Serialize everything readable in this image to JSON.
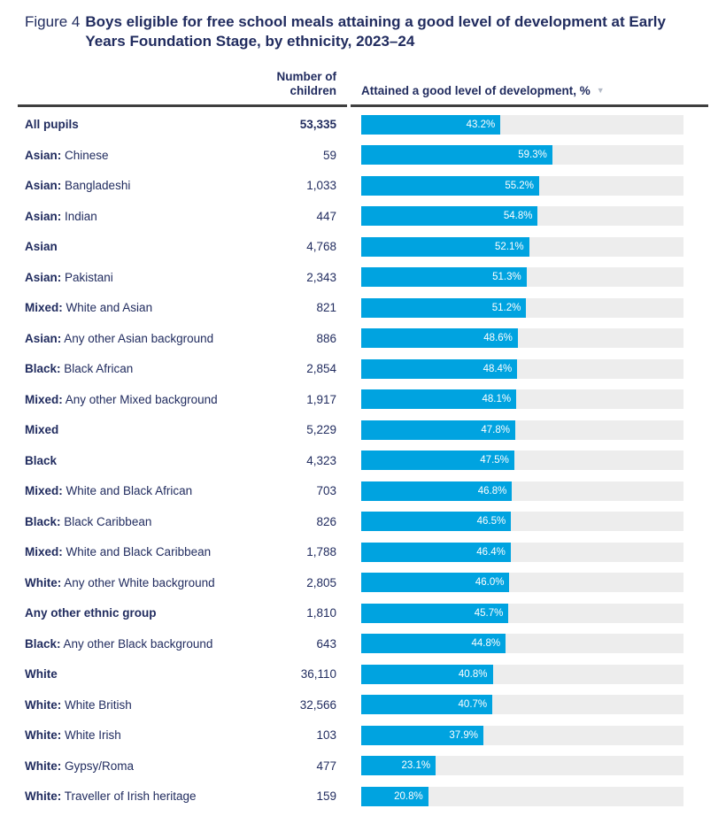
{
  "figure": {
    "label": "Figure 4",
    "title": "Boys eligible for free school meals attaining a good level of development at Early Years Foundation Stage, by ethnicity, 2023–24"
  },
  "table_header": {
    "children_line1": "Number of",
    "children_line2": "children",
    "attained": "Attained a good level of development, %",
    "sort_icon": "▼"
  },
  "colors": {
    "bar_fill": "#00a3e0",
    "bar_track": "#ededed",
    "text_navy": "#212c5f",
    "header_rule": "#3f3f3f",
    "sort_icon": "#b3bac7",
    "bar_label_text": "#ffffff"
  },
  "chart_data": {
    "type": "bar",
    "orientation": "horizontal",
    "title": "Boys eligible for free school meals attaining a good level of development at Early Years Foundation Stage, by ethnicity, 2023–24",
    "value_axis_label": "Attained a good level of development, %",
    "xlim": [
      0,
      100
    ],
    "grid": false,
    "legend": false,
    "rows": [
      {
        "prefix": "All pupils",
        "rest": "",
        "children": "53,335",
        "children_bold": true,
        "value": 43.2,
        "pct_label": "43.2%"
      },
      {
        "prefix": "Asian:",
        "rest": " Chinese",
        "children": "59",
        "children_bold": false,
        "value": 59.3,
        "pct_label": "59.3%"
      },
      {
        "prefix": "Asian:",
        "rest": " Bangladeshi",
        "children": "1,033",
        "children_bold": false,
        "value": 55.2,
        "pct_label": "55.2%"
      },
      {
        "prefix": "Asian:",
        "rest": " Indian",
        "children": "447",
        "children_bold": false,
        "value": 54.8,
        "pct_label": "54.8%"
      },
      {
        "prefix": "Asian",
        "rest": "",
        "children": "4,768",
        "children_bold": false,
        "value": 52.1,
        "pct_label": "52.1%"
      },
      {
        "prefix": "Asian:",
        "rest": " Pakistani",
        "children": "2,343",
        "children_bold": false,
        "value": 51.3,
        "pct_label": "51.3%"
      },
      {
        "prefix": "Mixed:",
        "rest": " White and Asian",
        "children": "821",
        "children_bold": false,
        "value": 51.2,
        "pct_label": "51.2%"
      },
      {
        "prefix": "Asian:",
        "rest": " Any other Asian background",
        "children": "886",
        "children_bold": false,
        "value": 48.6,
        "pct_label": "48.6%"
      },
      {
        "prefix": "Black:",
        "rest": " Black African",
        "children": "2,854",
        "children_bold": false,
        "value": 48.4,
        "pct_label": "48.4%"
      },
      {
        "prefix": "Mixed:",
        "rest": " Any other Mixed background",
        "children": "1,917",
        "children_bold": false,
        "value": 48.1,
        "pct_label": "48.1%"
      },
      {
        "prefix": "Mixed",
        "rest": "",
        "children": "5,229",
        "children_bold": false,
        "value": 47.8,
        "pct_label": "47.8%"
      },
      {
        "prefix": "Black",
        "rest": "",
        "children": "4,323",
        "children_bold": false,
        "value": 47.5,
        "pct_label": "47.5%"
      },
      {
        "prefix": "Mixed:",
        "rest": " White and Black African",
        "children": "703",
        "children_bold": false,
        "value": 46.8,
        "pct_label": "46.8%"
      },
      {
        "prefix": "Black:",
        "rest": " Black Caribbean",
        "children": "826",
        "children_bold": false,
        "value": 46.5,
        "pct_label": "46.5%"
      },
      {
        "prefix": "Mixed:",
        "rest": " White and Black Caribbean",
        "children": "1,788",
        "children_bold": false,
        "value": 46.4,
        "pct_label": "46.4%"
      },
      {
        "prefix": "White:",
        "rest": " Any other White background",
        "children": "2,805",
        "children_bold": false,
        "value": 46.0,
        "pct_label": "46.0%"
      },
      {
        "prefix": "Any other ethnic group",
        "rest": "",
        "children": "1,810",
        "children_bold": false,
        "value": 45.7,
        "pct_label": "45.7%"
      },
      {
        "prefix": "Black:",
        "rest": " Any other Black background",
        "children": "643",
        "children_bold": false,
        "value": 44.8,
        "pct_label": "44.8%"
      },
      {
        "prefix": "White",
        "rest": "",
        "children": "36,110",
        "children_bold": false,
        "value": 40.8,
        "pct_label": "40.8%"
      },
      {
        "prefix": "White:",
        "rest": " White British",
        "children": "32,566",
        "children_bold": false,
        "value": 40.7,
        "pct_label": "40.7%"
      },
      {
        "prefix": "White:",
        "rest": " White Irish",
        "children": "103",
        "children_bold": false,
        "value": 37.9,
        "pct_label": "37.9%"
      },
      {
        "prefix": "White:",
        "rest": " Gypsy/Roma",
        "children": "477",
        "children_bold": false,
        "value": 23.1,
        "pct_label": "23.1%"
      },
      {
        "prefix": "White:",
        "rest": " Traveller of Irish heritage",
        "children": "159",
        "children_bold": false,
        "value": 20.8,
        "pct_label": "20.8%"
      }
    ]
  }
}
